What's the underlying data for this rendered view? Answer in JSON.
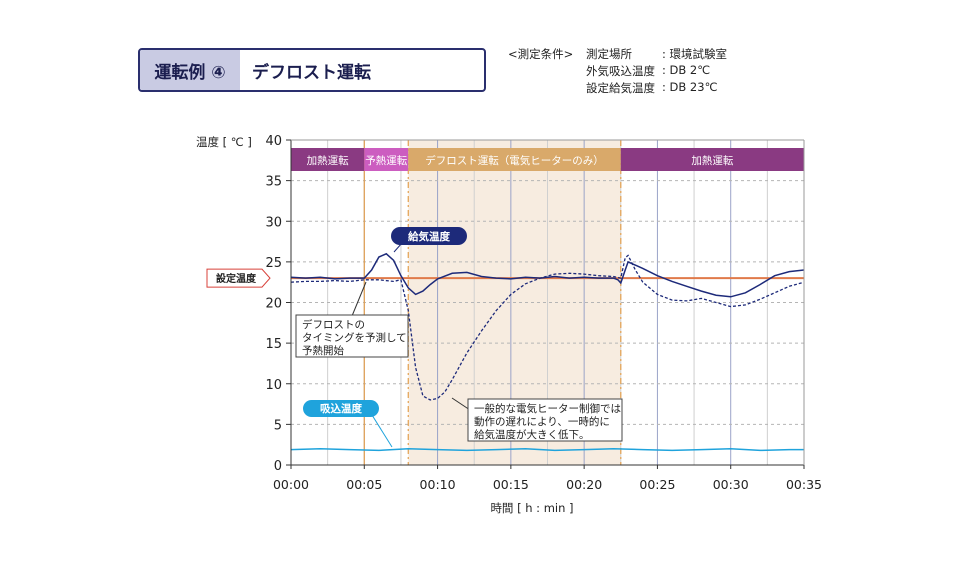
{
  "header": {
    "example_label": "運転例 ④",
    "mode_label": "デフロスト運転"
  },
  "conditions": {
    "heading": "<測定条件>",
    "rows": [
      {
        "label": "測定場所",
        "value": ": 環境試験室"
      },
      {
        "label": "外気吸込温度",
        "value": ": DB  2℃"
      },
      {
        "label": "設定給気温度",
        "value": ": DB 23℃"
      }
    ]
  },
  "colors": {
    "supply": "#1d2a7a",
    "intake": "#1fa3dc",
    "setpoint": "#e07a4a",
    "band_heating": "#8a3a82",
    "band_preheat": "#cc5dc0",
    "band_defrost": "#d9a96a",
    "defrost_fill": "#f7ece0",
    "grid_minor": "#d0d0d0",
    "grid_major": "#9aa3c8",
    "phase_line": "#e3a04f"
  },
  "chart_data": {
    "type": "line",
    "ylabel": "温度 [ ℃ ]",
    "xlabel": "時間 [ h : min ]",
    "ylim": [
      0,
      40
    ],
    "xlim": [
      0,
      35
    ],
    "yticks": [
      0,
      5,
      10,
      15,
      20,
      25,
      30,
      35,
      40
    ],
    "xticks": [
      "00:00",
      "00:05",
      "00:10",
      "00:15",
      "00:20",
      "00:25",
      "00:30",
      "00:35"
    ],
    "setpoint": {
      "label": "設定温度",
      "value": 23
    },
    "phases": [
      {
        "label": "加熱運転",
        "start": 0,
        "end": 5
      },
      {
        "label": "予熱運転",
        "start": 5,
        "end": 8
      },
      {
        "label": "デフロスト運転（電気ヒーターのみ）",
        "start": 8,
        "end": 22.5
      },
      {
        "label": "加熱運転",
        "start": 22.5,
        "end": 35
      }
    ],
    "series": [
      {
        "name": "給気温度",
        "style": "solid",
        "x": [
          0,
          1,
          2,
          3,
          4,
          5,
          5.5,
          6,
          6.5,
          7,
          7.5,
          8,
          8.5,
          9,
          9.5,
          10,
          11,
          12,
          13,
          14,
          15,
          16,
          17,
          18,
          19,
          20,
          21,
          22,
          22.3,
          22.5,
          22.8,
          23,
          24,
          25,
          26,
          27,
          28,
          29,
          30,
          31,
          32,
          33,
          34,
          35
        ],
        "y": [
          23.1,
          23.0,
          23.1,
          22.9,
          23.0,
          23.0,
          24.0,
          25.6,
          26.0,
          25.2,
          23.3,
          21.8,
          21.0,
          21.4,
          22.2,
          22.9,
          23.6,
          23.7,
          23.2,
          23.0,
          22.9,
          23.1,
          23.0,
          23.2,
          23.0,
          23.1,
          23.0,
          23.0,
          22.8,
          22.4,
          24.0,
          25.0,
          24.2,
          23.3,
          22.6,
          22.0,
          21.4,
          20.9,
          20.7,
          21.2,
          22.2,
          23.3,
          23.8,
          24.0
        ]
      },
      {
        "name": "",
        "style": "dashed",
        "x": [
          0,
          1,
          2,
          3,
          4,
          5,
          6,
          7,
          7.5,
          8,
          8.5,
          9,
          9.5,
          10,
          10.5,
          11,
          12,
          13,
          14,
          15,
          16,
          17,
          18,
          19,
          20,
          21,
          22,
          22.5,
          22.8,
          23,
          23.5,
          24,
          25,
          26,
          27,
          28,
          29,
          30,
          31,
          32,
          33,
          34,
          35
        ],
        "y": [
          22.5,
          22.6,
          22.6,
          22.7,
          22.6,
          22.8,
          22.8,
          22.6,
          22.8,
          19.0,
          12.0,
          8.5,
          8.0,
          8.2,
          9.0,
          10.5,
          13.8,
          16.5,
          19.0,
          21.0,
          22.3,
          23.0,
          23.5,
          23.6,
          23.5,
          23.3,
          23.2,
          23.0,
          25.5,
          25.8,
          24.0,
          22.5,
          21.0,
          20.3,
          20.2,
          20.5,
          20.0,
          19.5,
          19.7,
          20.4,
          21.2,
          22.0,
          22.5
        ]
      },
      {
        "name": "吸込温度",
        "style": "solid",
        "x": [
          0,
          2,
          4,
          6,
          8,
          10,
          12,
          14,
          16,
          18,
          20,
          22,
          24,
          26,
          28,
          30,
          32,
          34,
          35
        ],
        "y": [
          1.9,
          2.0,
          1.9,
          1.8,
          2.0,
          1.9,
          1.8,
          1.9,
          2.0,
          1.8,
          1.9,
          2.0,
          1.9,
          1.8,
          1.9,
          2.0,
          1.8,
          1.9,
          1.9
        ]
      }
    ],
    "annotations": [
      {
        "text": "デフロストの\nタイミングを予測して\n予熱開始"
      },
      {
        "text": "一般的な電気ヒーター制御では\n動作の遅れにより、一時的に\n給気温度が大きく低下。"
      }
    ]
  }
}
